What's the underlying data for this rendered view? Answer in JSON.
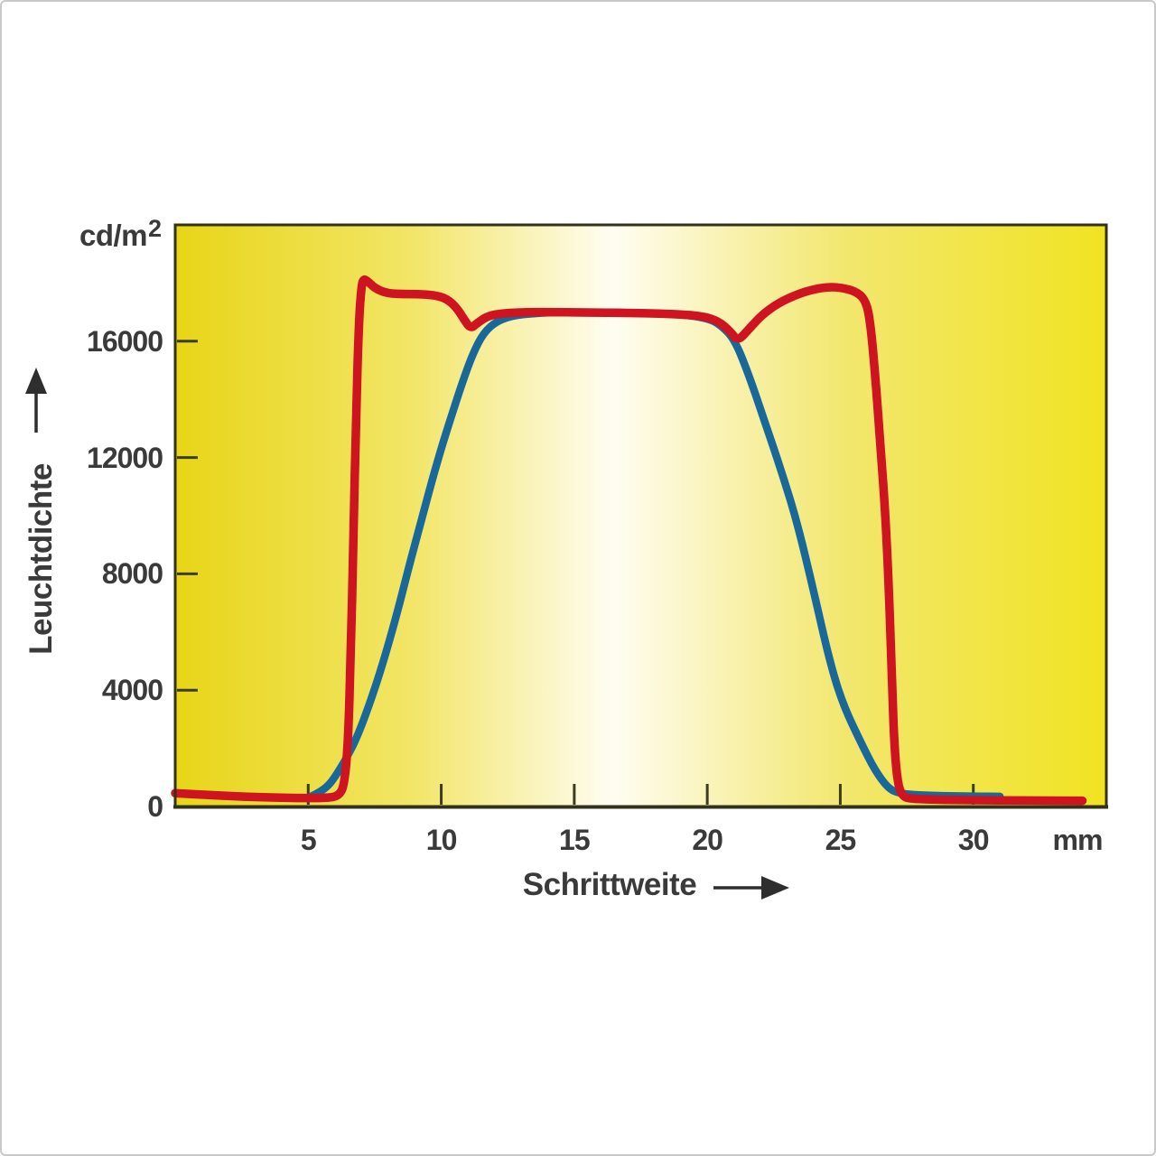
{
  "frame": {
    "background": "#ffffff",
    "border_color": "#c9c9c9"
  },
  "chart_data": {
    "type": "line",
    "title": "",
    "xlabel": "Schrittweite",
    "x_unit": "mm",
    "ylabel": "Leuchtdichte",
    "y_unit": "cd/m",
    "y_unit_sup": "2",
    "xlim": [
      0,
      35
    ],
    "ylim": [
      0,
      20000
    ],
    "x_ticks": [
      5,
      10,
      15,
      20,
      25,
      30
    ],
    "y_ticks": [
      0,
      4000,
      8000,
      12000,
      16000
    ],
    "grid": false,
    "legend": "none",
    "axis_color": "#32321a",
    "tick_color": "#3c3c1e",
    "label_color": "#3a3a3a",
    "arrow_color": "#2e2e2e",
    "plot_bg_gradient": [
      {
        "offset": 0.0,
        "color": "#e8d518"
      },
      {
        "offset": 0.25,
        "color": "#f2e566"
      },
      {
        "offset": 0.47,
        "color": "#fffdf2"
      },
      {
        "offset": 0.72,
        "color": "#f2e76e"
      },
      {
        "offset": 1.0,
        "color": "#f1e321"
      }
    ],
    "series": [
      {
        "name": "blue-curve",
        "color": "#19689a",
        "width": 8.5,
        "points": [
          [
            5.0,
            300
          ],
          [
            5.3,
            430
          ],
          [
            5.7,
            660
          ],
          [
            6.0,
            1000
          ],
          [
            6.4,
            1600
          ],
          [
            6.8,
            2300
          ],
          [
            7.3,
            3500
          ],
          [
            7.8,
            4900
          ],
          [
            8.3,
            6500
          ],
          [
            8.8,
            8300
          ],
          [
            9.3,
            10000
          ],
          [
            9.8,
            11700
          ],
          [
            10.3,
            13200
          ],
          [
            10.8,
            14600
          ],
          [
            11.2,
            15600
          ],
          [
            11.6,
            16300
          ],
          [
            12.1,
            16700
          ],
          [
            12.7,
            16880
          ],
          [
            13.5,
            16960
          ],
          [
            14.5,
            17000
          ],
          [
            15.5,
            17000
          ],
          [
            16.5,
            16990
          ],
          [
            17.5,
            16970
          ],
          [
            18.5,
            16940
          ],
          [
            19.4,
            16880
          ],
          [
            20.1,
            16760
          ],
          [
            20.5,
            16550
          ],
          [
            21.0,
            16100
          ],
          [
            21.5,
            15000
          ],
          [
            22.1,
            13400
          ],
          [
            22.8,
            11500
          ],
          [
            23.4,
            9700
          ],
          [
            24.0,
            7400
          ],
          [
            24.6,
            5000
          ],
          [
            25.1,
            3500
          ],
          [
            25.8,
            2150
          ],
          [
            26.3,
            1250
          ],
          [
            26.8,
            620
          ],
          [
            27.2,
            460
          ],
          [
            27.8,
            400
          ],
          [
            28.8,
            370
          ],
          [
            30.0,
            350
          ],
          [
            31.0,
            345
          ]
        ]
      },
      {
        "name": "red-curve",
        "color": "#ce1321",
        "width": 9.5,
        "points": [
          [
            0,
            460
          ],
          [
            1.2,
            400
          ],
          [
            2.5,
            340
          ],
          [
            3.8,
            305
          ],
          [
            5.0,
            285
          ],
          [
            5.8,
            300
          ],
          [
            6.15,
            380
          ],
          [
            6.35,
            700
          ],
          [
            6.5,
            2200
          ],
          [
            6.6,
            5200
          ],
          [
            6.7,
            9200
          ],
          [
            6.8,
            13500
          ],
          [
            6.9,
            16600
          ],
          [
            7.0,
            17900
          ],
          [
            7.08,
            18150
          ],
          [
            7.25,
            18050
          ],
          [
            7.5,
            17830
          ],
          [
            7.9,
            17660
          ],
          [
            8.4,
            17620
          ],
          [
            9.1,
            17620
          ],
          [
            9.7,
            17590
          ],
          [
            10.2,
            17470
          ],
          [
            10.6,
            17130
          ],
          [
            10.85,
            16760
          ],
          [
            11.1,
            16430
          ],
          [
            11.35,
            16620
          ],
          [
            11.75,
            16870
          ],
          [
            12.3,
            16960
          ],
          [
            13.2,
            17000
          ],
          [
            14.2,
            17000
          ],
          [
            15.2,
            16990
          ],
          [
            16.2,
            16980
          ],
          [
            17.2,
            16970
          ],
          [
            18.2,
            16950
          ],
          [
            19.1,
            16920
          ],
          [
            19.9,
            16850
          ],
          [
            20.45,
            16670
          ],
          [
            20.85,
            16350
          ],
          [
            21.15,
            16000
          ],
          [
            21.55,
            16400
          ],
          [
            22.05,
            16900
          ],
          [
            22.65,
            17300
          ],
          [
            23.35,
            17600
          ],
          [
            24.0,
            17790
          ],
          [
            24.6,
            17870
          ],
          [
            25.1,
            17830
          ],
          [
            25.55,
            17720
          ],
          [
            25.9,
            17480
          ],
          [
            26.1,
            16900
          ],
          [
            26.3,
            15000
          ],
          [
            26.5,
            12500
          ],
          [
            26.7,
            10000
          ],
          [
            26.85,
            7000
          ],
          [
            26.95,
            4000
          ],
          [
            27.05,
            1800
          ],
          [
            27.18,
            700
          ],
          [
            27.35,
            350
          ],
          [
            27.6,
            270
          ],
          [
            28.5,
            235
          ],
          [
            30.0,
            215
          ],
          [
            32.0,
            205
          ],
          [
            34.1,
            200
          ]
        ]
      }
    ]
  }
}
